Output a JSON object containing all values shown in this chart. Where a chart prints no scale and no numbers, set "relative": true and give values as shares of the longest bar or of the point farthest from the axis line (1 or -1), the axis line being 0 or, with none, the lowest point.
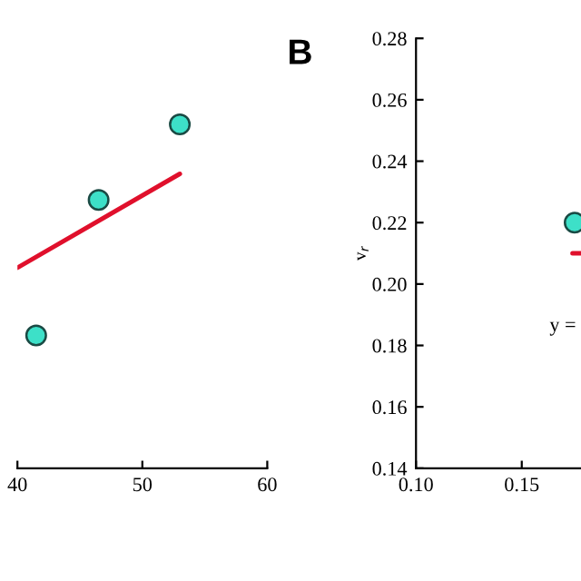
{
  "chart_data": [
    {
      "type": "scatter",
      "relative": true,
      "xlim": [
        40,
        60
      ],
      "xticks": [
        40,
        50,
        60
      ],
      "grid": false,
      "legend": false,
      "series": [
        {
          "color": "#3de0c8",
          "marker": "circle",
          "x": [
            41.5,
            46.5,
            53
          ],
          "values": [
            0.386,
            0.78,
            1
          ]
        },
        {
          "type": "line",
          "color": "#e0102c",
          "x": [
            40,
            53
          ],
          "values": [
            0.583,
            0.856
          ]
        }
      ]
    },
    {
      "type": "scatter",
      "title": "B",
      "ylabel": "v$_{r}$",
      "xlim": [
        0.1,
        0.178
      ],
      "xticks": [
        {
          "value": 0.1,
          "label": "0.10"
        },
        0.15
      ],
      "ylim": [
        0.14,
        0.28
      ],
      "yticks": [
        0.14,
        0.16,
        0.18,
        {
          "value": 0.2,
          "label": "0.20"
        },
        0.22,
        0.24,
        0.26,
        0.28
      ],
      "grid": false,
      "legend": false,
      "annotations": [
        "y ="
      ],
      "series": [
        {
          "color": "#3de0c8",
          "marker": "circle",
          "x": [
            0.175
          ],
          "values": [
            0.22
          ]
        },
        {
          "type": "line",
          "color": "#e0102c",
          "x": [
            0.174,
            0.178
          ],
          "values": [
            0.21,
            0.21
          ]
        }
      ]
    }
  ]
}
